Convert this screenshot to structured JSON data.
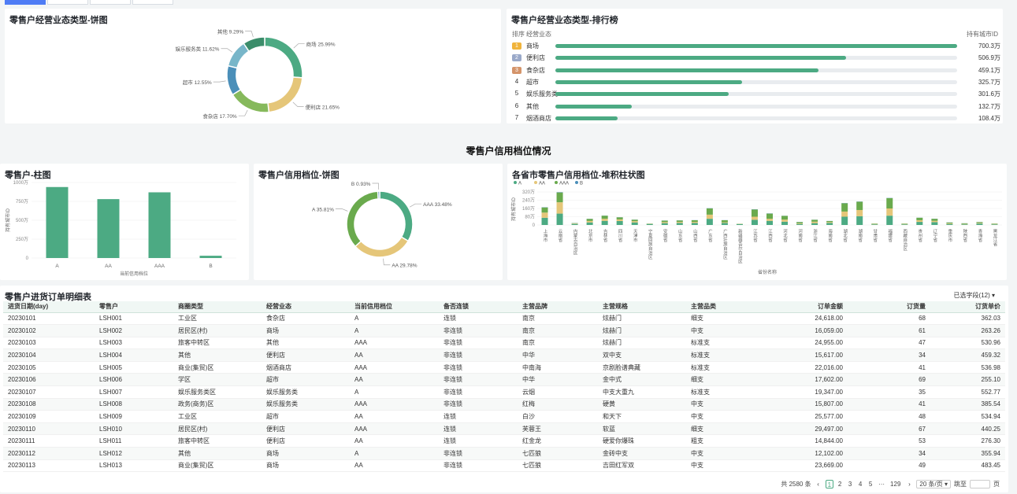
{
  "tabs": [
    "",
    "",
    "",
    ""
  ],
  "pie1": {
    "title": "零售户经营业态类型-饼图",
    "slices": [
      {
        "name": "商场",
        "pct": 25.99,
        "label": "商场 25.99%",
        "color": "#4caa83"
      },
      {
        "name": "便利店",
        "pct": 21.65,
        "label": "便利店 21.65%",
        "color": "#e5c679"
      },
      {
        "name": "食杂店",
        "pct": 17.7,
        "label": "食杂店 17.70%",
        "color": "#86b95c"
      },
      {
        "name": "超市",
        "pct": 12.55,
        "label": "超市 12.55%",
        "color": "#4b8fb9"
      },
      {
        "name": "娱乐服务类",
        "pct": 11.62,
        "label": "娱乐服务类 11.62%",
        "color": "#78b6c9"
      },
      {
        "name": "其他",
        "pct": 9.29,
        "label": "其他 9.29%",
        "color": "#3b8d6a"
      }
    ]
  },
  "ranking": {
    "title": "零售户经营业态类型-排行榜",
    "col_rank": "排序",
    "col_type": "经营业态",
    "col_value": "持有城市ID",
    "max": 700.3,
    "rows": [
      {
        "rank": "1",
        "name": "商场",
        "value": 700.3,
        "label": "700.3万",
        "badge": "#f0b43c"
      },
      {
        "rank": "2",
        "name": "便利店",
        "value": 506.9,
        "label": "506.9万",
        "badge": "#9aa9c9"
      },
      {
        "rank": "3",
        "name": "食杂店",
        "value": 459.1,
        "label": "459.1万",
        "badge": "#d4946a"
      },
      {
        "rank": "4",
        "name": "超市",
        "value": 325.7,
        "label": "325.7万",
        "badge": ""
      },
      {
        "rank": "5",
        "name": "娱乐服务类",
        "value": 301.6,
        "label": "301.6万",
        "badge": ""
      },
      {
        "rank": "6",
        "name": "其他",
        "value": 132.7,
        "label": "132.7万",
        "badge": ""
      },
      {
        "rank": "7",
        "name": "烟酒商店",
        "value": 108.4,
        "label": "108.4万",
        "badge": ""
      }
    ]
  },
  "section_title": "零售户信用档位情况",
  "bar": {
    "title": "零售户-柱图",
    "ylabel": "持有城市ID",
    "xlabel": "当前信用档位",
    "ylim": [
      0,
      1000
    ],
    "yticks": [
      "0",
      "250万",
      "500万",
      "750万",
      "1000万"
    ],
    "categories": [
      "A",
      "AA",
      "AAA",
      "B"
    ],
    "values": [
      940,
      780,
      870,
      30
    ],
    "color": "#4caa83"
  },
  "pie2": {
    "title": "零售户信用档位-饼图",
    "slices": [
      {
        "name": "AAA",
        "pct": 33.48,
        "label": "AAA 33.48%",
        "color": "#4caa83"
      },
      {
        "name": "AA",
        "pct": 29.78,
        "label": "AA 29.78%",
        "color": "#e5c679"
      },
      {
        "name": "A",
        "pct": 35.81,
        "label": "A 35.81%",
        "color": "#6aaa4d"
      },
      {
        "name": "B",
        "pct": 0.93,
        "label": "B 0.93%",
        "color": "#4b8fb9"
      }
    ]
  },
  "stacked": {
    "title": "各省市零售户信用档位-堆积柱状图",
    "ylabel": "持有城市ID",
    "xlabel": "省份名称",
    "yticks": [
      "0",
      "80万",
      "160万",
      "240万",
      "320万"
    ],
    "ymax": 320,
    "legend": [
      "A",
      "AA",
      "AAA",
      "B"
    ],
    "colors": [
      "#4caa83",
      "#e5c679",
      "#6aaa4d",
      "#4b8fb9"
    ],
    "categories": [
      "上海市",
      "云南省",
      "内蒙古自治区",
      "北京市",
      "吉林省",
      "四川省",
      "天津市",
      "宁夏回族自治区",
      "安徽省",
      "山东省",
      "山西省",
      "广东省",
      "广西壮族自治区",
      "新疆维吾尔自治区",
      "江苏省",
      "江西省",
      "河北省",
      "河南省",
      "浙江省",
      "海南省",
      "湖北省",
      "湖南省",
      "甘肃省",
      "福建省",
      "西藏自治区",
      "贵州省",
      "辽宁省",
      "重庆市",
      "陕西省",
      "青海省",
      "黑龙江省"
    ],
    "series": [
      {
        "name": "A",
        "values": [
          70,
          110,
          10,
          25,
          40,
          38,
          25,
          10,
          18,
          20,
          20,
          60,
          20,
          8,
          50,
          40,
          32,
          10,
          18,
          20,
          80,
          85,
          6,
          90,
          6,
          30,
          28,
          10,
          6,
          14,
          6
        ]
      },
      {
        "name": "AA",
        "values": [
          50,
          110,
          4,
          14,
          20,
          16,
          12,
          2,
          10,
          10,
          10,
          40,
          6,
          2,
          30,
          20,
          20,
          6,
          14,
          8,
          50,
          60,
          4,
          70,
          4,
          16,
          12,
          6,
          4,
          6,
          4
        ]
      },
      {
        "name": "AAA",
        "values": [
          50,
          95,
          4,
          20,
          30,
          20,
          14,
          2,
          14,
          14,
          16,
          60,
          20,
          2,
          70,
          50,
          36,
          12,
          18,
          10,
          80,
          80,
          4,
          100,
          4,
          24,
          20,
          8,
          6,
          8,
          4
        ]
      },
      {
        "name": "B",
        "values": [
          2,
          3,
          1,
          1,
          1,
          1,
          1,
          0,
          1,
          1,
          1,
          2,
          1,
          0,
          2,
          2,
          1,
          1,
          1,
          1,
          2,
          2,
          0,
          2,
          0,
          1,
          1,
          1,
          1,
          1,
          0
        ]
      }
    ]
  },
  "table": {
    "title": "零售户进货订单明细表",
    "column_select": "已选字段(12) ▾",
    "headers": [
      "进货日期(day)",
      "零售户",
      "商圈类型",
      "经营业态",
      "当前信用档位",
      "备否连锁",
      "主营品牌",
      "主营规格",
      "主营品类",
      "订单金额",
      "订货量",
      "订货单价"
    ],
    "rows": [
      [
        "20230101",
        "LSH001",
        "工业区",
        "食杂店",
        "A",
        "连锁",
        "南京",
        "炫赫门",
        "细支",
        "24,618.00",
        "68",
        "362.03"
      ],
      [
        "20230102",
        "LSH002",
        "居民区(村)",
        "商场",
        "A",
        "非连锁",
        "南京",
        "炫赫门",
        "中支",
        "16,059.00",
        "61",
        "263.26"
      ],
      [
        "20230103",
        "LSH003",
        "旅客中转区",
        "其他",
        "AAA",
        "非连锁",
        "南京",
        "炫赫门",
        "标准支",
        "24,955.00",
        "47",
        "530.96"
      ],
      [
        "20230104",
        "LSH004",
        "其他",
        "便利店",
        "AA",
        "非连锁",
        "中华",
        "双中支",
        "标准支",
        "15,617.00",
        "34",
        "459.32"
      ],
      [
        "20230105",
        "LSH005",
        "商业(集贸)区",
        "烟酒商店",
        "AAA",
        "非连锁",
        "中南海",
        "京剧脸谱典藏",
        "标准支",
        "22,016.00",
        "41",
        "536.98"
      ],
      [
        "20230106",
        "LSH006",
        "学区",
        "超市",
        "AA",
        "非连锁",
        "中华",
        "金中式",
        "细支",
        "17,602.00",
        "69",
        "255.10"
      ],
      [
        "20230107",
        "LSH007",
        "娱乐服务类区",
        "娱乐服务类",
        "A",
        "非连锁",
        "云烟",
        "中支大重九",
        "标准支",
        "19,347.00",
        "35",
        "552.77"
      ],
      [
        "20230108",
        "LSH008",
        "政务(商务)区",
        "娱乐服务类",
        "AAA",
        "非连锁",
        "红梅",
        "硬黄",
        "中支",
        "15,807.00",
        "41",
        "385.54"
      ],
      [
        "20230109",
        "LSH009",
        "工业区",
        "超市",
        "AA",
        "连锁",
        "白沙",
        "和天下",
        "中支",
        "25,577.00",
        "48",
        "534.94"
      ],
      [
        "20230110",
        "LSH010",
        "居民区(村)",
        "便利店",
        "AAA",
        "连锁",
        "芙蓉王",
        "软蓝",
        "细支",
        "29,497.00",
        "67",
        "440.25"
      ],
      [
        "20230111",
        "LSH011",
        "旅客中转区",
        "便利店",
        "AA",
        "连锁",
        "红金龙",
        "硬爱你爆珠",
        "粗支",
        "14,844.00",
        "53",
        "276.30"
      ],
      [
        "20230112",
        "LSH012",
        "其他",
        "商场",
        "A",
        "非连锁",
        "七匹狼",
        "金砖中支",
        "中支",
        "12,102.00",
        "34",
        "355.94"
      ],
      [
        "20230113",
        "LSH013",
        "商业(集贸)区",
        "商场",
        "AA",
        "非连锁",
        "七匹狼",
        "吉田红军双",
        "中支",
        "23,669.00",
        "49",
        "483.45"
      ]
    ]
  },
  "pager": {
    "total": "共 2580 条",
    "prev": "‹",
    "pages": [
      "1",
      "2",
      "3",
      "4",
      "5",
      "···",
      "129"
    ],
    "next": "›",
    "page_size": "20 条/页 ▾",
    "goto": "跳至",
    "goto_unit": "页"
  }
}
